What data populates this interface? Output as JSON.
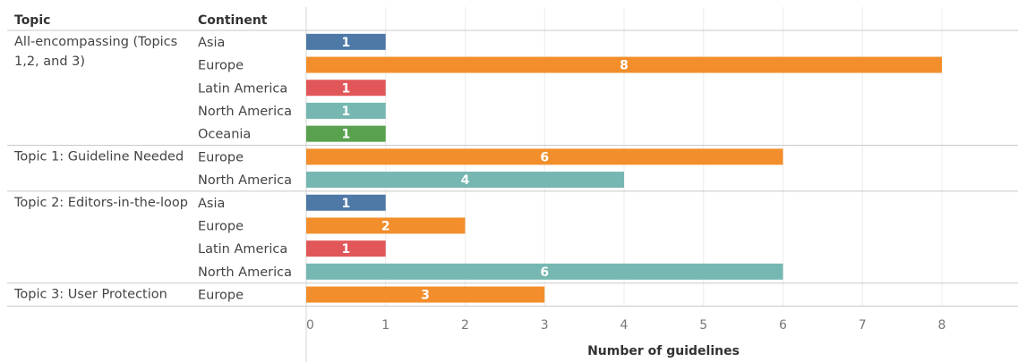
{
  "chart_data": {
    "type": "bar",
    "orientation": "horizontal",
    "headers": {
      "topic": "Topic",
      "continent": "Continent"
    },
    "xlabel": "Number of guidelines",
    "ylabel": "",
    "xlim": [
      0,
      9
    ],
    "xticks": [
      0,
      1,
      2,
      3,
      4,
      5,
      6,
      7,
      8,
      9
    ],
    "grid": true,
    "legend": "none",
    "colors": {
      "Asia": "#4e79a7",
      "Europe": "#f28e2b",
      "Latin America": "#e15759",
      "North America": "#76b7b2",
      "Oceania": "#59a14f"
    },
    "groups": [
      {
        "topic": "All-encompassing (Topics 1,2, and 3)",
        "topic_lines": [
          "All-encompassing (Topics",
          "1,2, and 3)"
        ],
        "rows": [
          {
            "continent": "Asia",
            "value": 1
          },
          {
            "continent": "Europe",
            "value": 8
          },
          {
            "continent": "Latin America",
            "value": 1
          },
          {
            "continent": "North America",
            "value": 1
          },
          {
            "continent": "Oceania",
            "value": 1
          }
        ]
      },
      {
        "topic": "Topic 1: Guideline Needed",
        "topic_lines": [
          "Topic 1: Guideline Needed"
        ],
        "rows": [
          {
            "continent": "Europe",
            "value": 6
          },
          {
            "continent": "North America",
            "value": 4
          }
        ]
      },
      {
        "topic": "Topic 2: Editors-in-the-loop",
        "topic_lines": [
          "Topic 2: Editors-in-the-loop"
        ],
        "rows": [
          {
            "continent": "Asia",
            "value": 1
          },
          {
            "continent": "Europe",
            "value": 2
          },
          {
            "continent": "Latin America",
            "value": 1
          },
          {
            "continent": "North America",
            "value": 6
          }
        ]
      },
      {
        "topic": "Topic 3: User Protection",
        "topic_lines": [
          "Topic 3: User Protection"
        ],
        "rows": [
          {
            "continent": "Europe",
            "value": 3
          }
        ]
      }
    ]
  }
}
